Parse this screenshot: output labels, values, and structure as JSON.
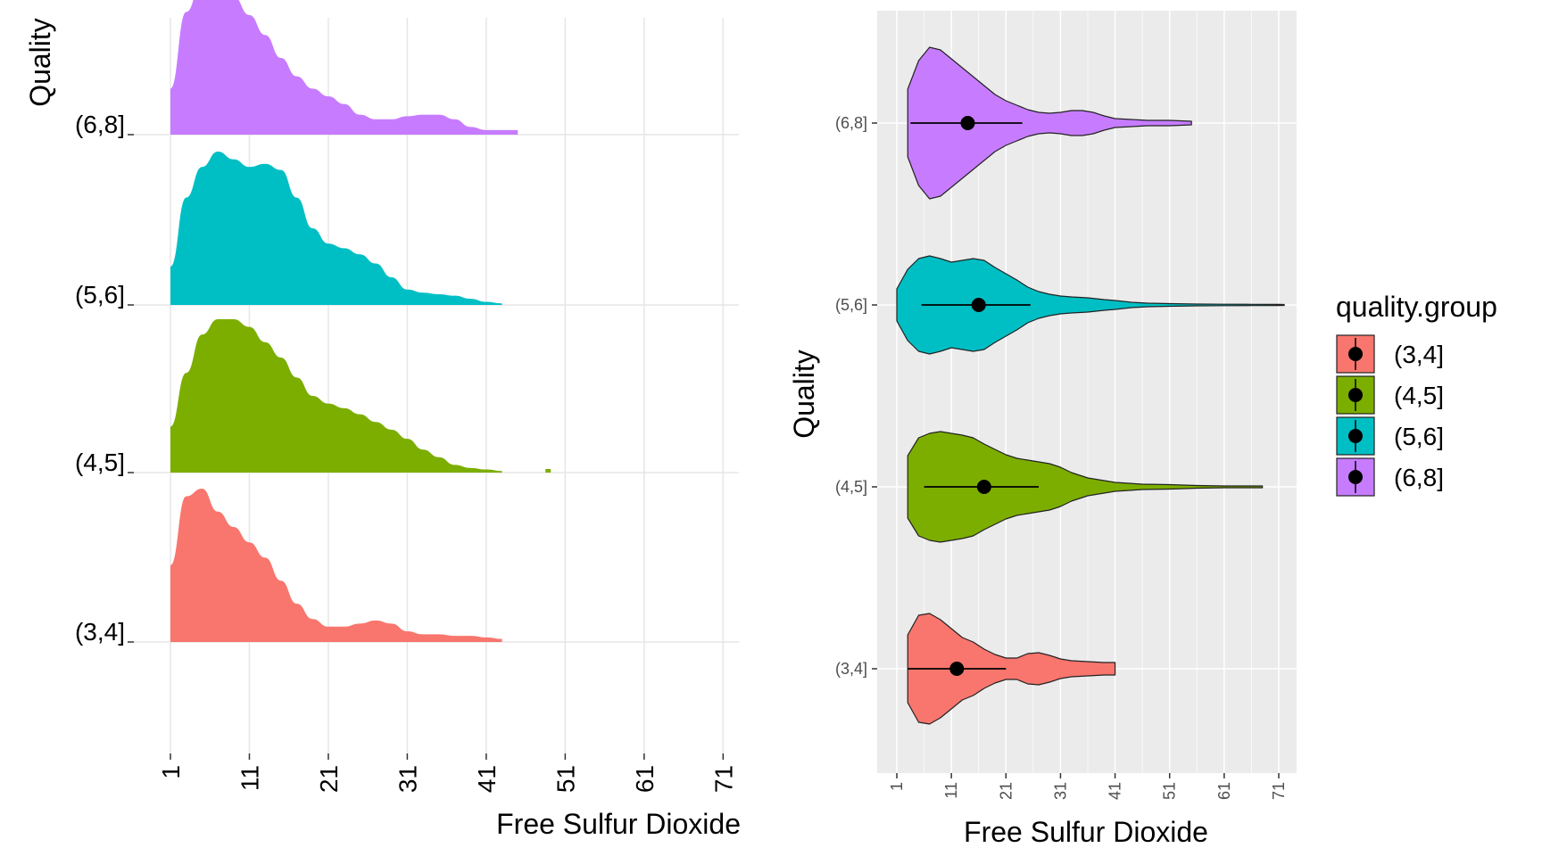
{
  "colors": {
    "(3,4]": "#F8766D",
    "(4,5]": "#7CAE00",
    "(5,6]": "#00BFC4",
    "(6,8]": "#C77CFF"
  },
  "chart_data": [
    {
      "type": "ridgeline",
      "xlabel": "Free Sulfur Dioxide",
      "ylabel": "Quality",
      "x_ticks": [
        "1",
        "11",
        "21",
        "31",
        "41",
        "51",
        "61",
        "71"
      ],
      "xlim": [
        1,
        73
      ],
      "categories": [
        "(3,4]",
        "(4,5]",
        "(5,6]",
        "(6,8]"
      ],
      "grid": true,
      "series": [
        {
          "name": "(3,4]",
          "x": [
            1,
            3,
            5,
            7,
            9,
            11,
            13,
            15,
            17,
            19,
            21,
            23,
            25,
            27,
            29,
            31,
            33,
            35,
            37,
            39,
            41,
            43
          ],
          "density": [
            0.5,
            0.95,
            1.0,
            0.85,
            0.75,
            0.65,
            0.55,
            0.4,
            0.25,
            0.15,
            0.1,
            0.1,
            0.12,
            0.14,
            0.12,
            0.07,
            0.05,
            0.05,
            0.04,
            0.04,
            0.03,
            0.02
          ]
        },
        {
          "name": "(4,5]",
          "x": [
            1,
            3,
            5,
            7,
            9,
            11,
            13,
            15,
            17,
            19,
            21,
            23,
            25,
            27,
            29,
            31,
            33,
            35,
            37,
            39,
            41,
            43
          ],
          "density": [
            0.3,
            0.65,
            0.9,
            1.0,
            1.0,
            0.95,
            0.85,
            0.75,
            0.62,
            0.5,
            0.45,
            0.42,
            0.38,
            0.33,
            0.28,
            0.22,
            0.15,
            0.1,
            0.05,
            0.03,
            0.02,
            0.01
          ]
        },
        {
          "name": "(5,6]",
          "x": [
            1,
            3,
            5,
            7,
            9,
            11,
            13,
            15,
            17,
            19,
            21,
            23,
            25,
            27,
            29,
            31,
            33,
            35,
            37,
            39,
            41,
            43
          ],
          "density": [
            0.25,
            0.7,
            0.9,
            1.0,
            0.95,
            0.9,
            0.92,
            0.88,
            0.7,
            0.5,
            0.4,
            0.37,
            0.33,
            0.27,
            0.18,
            0.1,
            0.08,
            0.07,
            0.06,
            0.04,
            0.02,
            0.01
          ]
        },
        {
          "name": "(6,8]",
          "x": [
            1,
            3,
            5,
            7,
            9,
            11,
            13,
            15,
            17,
            19,
            21,
            23,
            25,
            27,
            29,
            31,
            33,
            35,
            37,
            39,
            41,
            43,
            45
          ],
          "density": [
            0.3,
            0.8,
            1.0,
            0.98,
            0.9,
            0.78,
            0.65,
            0.5,
            0.38,
            0.3,
            0.25,
            0.2,
            0.13,
            0.1,
            0.1,
            0.12,
            0.13,
            0.13,
            0.1,
            0.05,
            0.03,
            0.03,
            0.03
          ]
        }
      ]
    },
    {
      "type": "violin",
      "xlabel": "Free Sulfur Dioxide",
      "ylabel": "Quality",
      "x_ticks": [
        "1",
        "11",
        "21",
        "31",
        "41",
        "51",
        "61",
        "71"
      ],
      "xlim": [
        1,
        73
      ],
      "categories": [
        "(3,4]",
        "(4,5]",
        "(5,6]",
        "(6,8]"
      ],
      "legend": {
        "title": "quality.group",
        "position": "right"
      },
      "series": [
        {
          "name": "(3,4]",
          "mean": 12,
          "interval": [
            3,
            21
          ],
          "x_range": [
            3,
            41
          ]
        },
        {
          "name": "(4,5]",
          "mean": 17,
          "interval": [
            6,
            27
          ],
          "x_range": [
            3,
            68
          ]
        },
        {
          "name": "(5,6]",
          "mean": 16,
          "interval": [
            5.5,
            25.5
          ],
          "x_range": [
            1,
            72
          ]
        },
        {
          "name": "(6,8]",
          "mean": 14,
          "interval": [
            3.5,
            24
          ],
          "x_range": [
            3,
            55
          ]
        }
      ]
    }
  ]
}
